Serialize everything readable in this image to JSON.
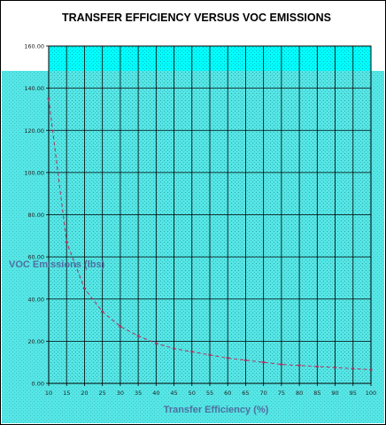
{
  "chart_data": {
    "type": "line",
    "title": "TRANSFER EFFICIENCY VERSUS VOC EMISSIONS",
    "xlabel": "Transfer Efficiency (%)",
    "ylabel": "VOC Emissions (lbs)",
    "x": [
      10,
      15,
      20,
      25,
      30,
      35,
      40,
      45,
      50,
      55,
      60,
      65,
      70,
      75,
      80,
      85,
      90,
      95,
      100
    ],
    "y_ticks": [
      "0.00",
      "20.00",
      "40.00",
      "60.00",
      "80.00",
      "100.00",
      "120.00",
      "140.00",
      "160.00"
    ],
    "x_ticks": [
      "10",
      "15",
      "20",
      "25",
      "30",
      "35",
      "40",
      "45",
      "50",
      "55",
      "60",
      "65",
      "70",
      "75",
      "80",
      "85",
      "90",
      "95",
      "100"
    ],
    "ylim": [
      0,
      160
    ],
    "grid": true,
    "legend": "none",
    "series": [
      {
        "values": [
          135,
          67,
          45,
          34,
          27,
          22.5,
          19,
          16.5,
          15,
          13.5,
          12,
          11,
          10,
          9,
          8.5,
          8,
          7.5,
          7,
          6.5
        ]
      }
    ],
    "colors": {
      "plot_fill": "#00ffff",
      "plot_fill_lower": "#55e6e6",
      "gridline": "#000000",
      "line": "#b03060",
      "axis_label": "#4f6fa0"
    }
  }
}
